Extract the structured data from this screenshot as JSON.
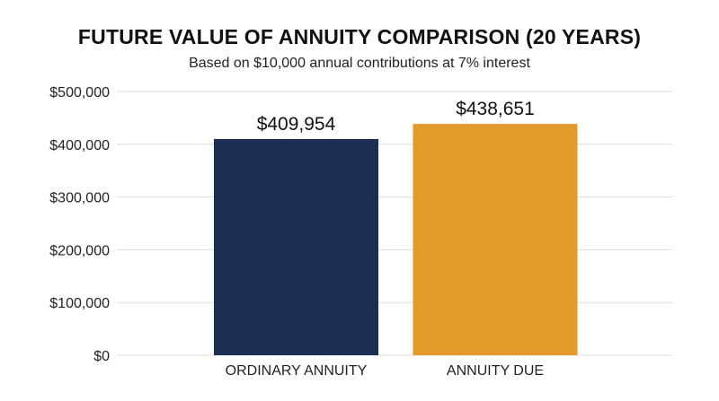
{
  "chart_data": {
    "type": "bar",
    "title": "FUTURE VALUE OF ANNUITY COMPARISON (20 YEARS)",
    "subtitle": "Based on $10,000 annual contributions at 7% interest",
    "categories": [
      "ORDINARY ANNUITY",
      "ANNUITY DUE"
    ],
    "values": [
      409954,
      438651
    ],
    "value_labels": [
      "$409,954",
      "$438,651"
    ],
    "colors": [
      "#1b2f55",
      "#e39a2b"
    ],
    "ylim": [
      0,
      500000
    ],
    "yticks": [
      0,
      100000,
      200000,
      300000,
      400000,
      500000
    ],
    "ytick_labels": [
      "$0",
      "$100,000",
      "$200,000",
      "$300,000",
      "$400,000",
      "$500,000"
    ],
    "xlabel": "",
    "ylabel": "",
    "grid": true,
    "grid_color": "#dddddd",
    "legend": false
  }
}
